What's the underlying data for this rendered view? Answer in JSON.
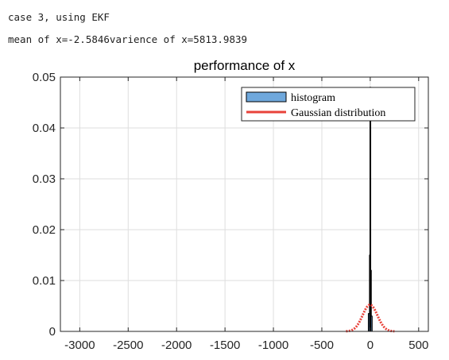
{
  "console": {
    "line1": "case 3, using EKF",
    "line2": "mean of x=-2.5846varience of x=5813.9839"
  },
  "chart_data": {
    "type": "bar",
    "title": "performance of x",
    "xlabel": "",
    "ylabel": "",
    "xlim": [
      -3200,
      600
    ],
    "ylim": [
      0,
      0.05
    ],
    "xticks": [
      -3000,
      -2500,
      -2000,
      -1500,
      -1000,
      -500,
      0,
      500
    ],
    "xtick_labels": [
      "-3000",
      "-2500",
      "-2000",
      "-1500",
      "-1000",
      "-500",
      "0",
      "500"
    ],
    "yticks": [
      0,
      0.01,
      0.02,
      0.03,
      0.04,
      0.05
    ],
    "ytick_labels": [
      "0",
      "0.01",
      "0.02",
      "0.03",
      "0.04",
      "0.05"
    ],
    "grid": true,
    "legend_position": "top-right",
    "series": [
      {
        "name": "histogram",
        "kind": "histogram",
        "color": "#6fa8dc",
        "edge_color": "#000000",
        "bins": [
          {
            "x0": -20,
            "x1": -8,
            "y": 0.0035
          },
          {
            "x0": -8,
            "x1": -3,
            "y": 0.015
          },
          {
            "x0": -3,
            "x1": 3,
            "y": 0.048
          },
          {
            "x0": 3,
            "x1": 8,
            "y": 0.012
          },
          {
            "x0": 8,
            "x1": 20,
            "y": 0.003
          }
        ]
      },
      {
        "name": "Gaussian distribution",
        "kind": "line",
        "color": "#e8423a",
        "mean": -2.5846,
        "variance": 5813.9839,
        "x_range": [
          -250,
          250
        ]
      }
    ]
  }
}
